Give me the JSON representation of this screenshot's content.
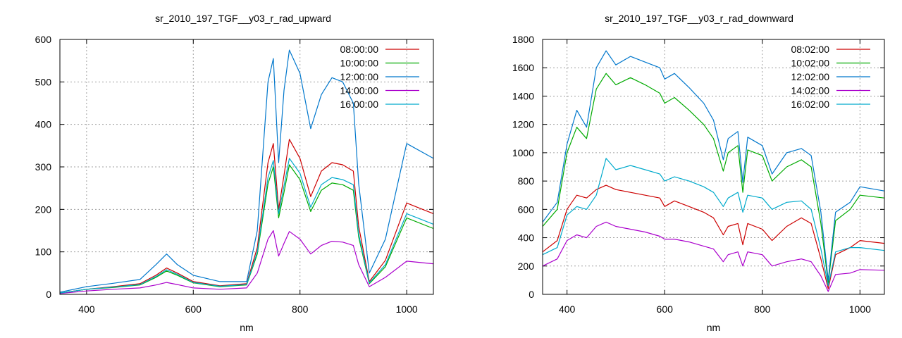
{
  "chart_data": [
    {
      "type": "line",
      "title": "sr_2010_197_TGF__y03_r_rad_upward",
      "xlabel": "nm",
      "ylabel": "",
      "xlim": [
        350,
        1050
      ],
      "ylim": [
        0,
        600
      ],
      "xticks": [
        400,
        600,
        800,
        1000
      ],
      "yticks": [
        0,
        100,
        200,
        300,
        400,
        500,
        600
      ],
      "grid": true,
      "legend_position": "top-right",
      "series": [
        {
          "name": "08:00:00",
          "color": "#cc0000",
          "x": [
            350,
            400,
            450,
            500,
            530,
            550,
            570,
            600,
            650,
            700,
            720,
            740,
            750,
            760,
            770,
            780,
            800,
            820,
            840,
            860,
            880,
            900,
            910,
            930,
            960,
            1000,
            1050
          ],
          "y": [
            3,
            12,
            18,
            25,
            45,
            62,
            50,
            30,
            20,
            25,
            110,
            310,
            355,
            200,
            280,
            365,
            320,
            230,
            290,
            310,
            305,
            290,
            160,
            30,
            80,
            215,
            190
          ]
        },
        {
          "name": "10:00:00",
          "color": "#00aa00",
          "x": [
            350,
            400,
            450,
            500,
            530,
            550,
            570,
            600,
            650,
            700,
            720,
            740,
            750,
            760,
            770,
            780,
            800,
            820,
            840,
            860,
            880,
            900,
            910,
            930,
            960,
            1000,
            1050
          ],
          "y": [
            3,
            12,
            16,
            22,
            40,
            55,
            45,
            27,
            18,
            22,
            95,
            260,
            300,
            180,
            240,
            305,
            270,
            195,
            245,
            262,
            258,
            245,
            135,
            25,
            65,
            180,
            155
          ]
        },
        {
          "name": "12:00:00",
          "color": "#0077cc",
          "x": [
            350,
            400,
            450,
            500,
            530,
            550,
            570,
            600,
            650,
            700,
            720,
            740,
            750,
            760,
            770,
            780,
            800,
            820,
            840,
            860,
            880,
            900,
            910,
            930,
            960,
            1000,
            1050
          ],
          "y": [
            5,
            18,
            26,
            35,
            70,
            95,
            70,
            45,
            30,
            30,
            150,
            500,
            555,
            310,
            480,
            575,
            520,
            390,
            470,
            510,
            500,
            450,
            260,
            50,
            130,
            355,
            320
          ]
        },
        {
          "name": "14:00:00",
          "color": "#aa00cc",
          "x": [
            350,
            400,
            450,
            500,
            530,
            550,
            570,
            600,
            650,
            700,
            720,
            740,
            750,
            760,
            770,
            780,
            800,
            820,
            840,
            860,
            880,
            900,
            910,
            930,
            960,
            1000,
            1050
          ],
          "y": [
            2,
            8,
            12,
            15,
            22,
            28,
            23,
            15,
            12,
            15,
            50,
            130,
            150,
            90,
            120,
            148,
            130,
            95,
            115,
            125,
            123,
            115,
            70,
            18,
            40,
            78,
            72
          ]
        },
        {
          "name": "16:00:00",
          "color": "#00aacc",
          "x": [
            350,
            400,
            450,
            500,
            530,
            550,
            570,
            600,
            650,
            700,
            720,
            740,
            750,
            760,
            770,
            780,
            800,
            820,
            840,
            860,
            880,
            900,
            910,
            930,
            960,
            1000,
            1050
          ],
          "y": [
            3,
            12,
            17,
            23,
            42,
            58,
            47,
            28,
            19,
            23,
            100,
            275,
            315,
            190,
            255,
            320,
            285,
            205,
            258,
            275,
            270,
            258,
            142,
            27,
            70,
            190,
            165
          ]
        }
      ]
    },
    {
      "type": "line",
      "title": "sr_2010_197_TGF__y03_r_rad_downward",
      "xlabel": "nm",
      "ylabel": "",
      "xlim": [
        350,
        1050
      ],
      "ylim": [
        0,
        1800
      ],
      "xticks": [
        400,
        600,
        800,
        1000
      ],
      "yticks": [
        0,
        200,
        400,
        600,
        800,
        1000,
        1200,
        1400,
        1600,
        1800
      ],
      "grid": true,
      "legend_position": "top-right",
      "series": [
        {
          "name": "08:02:00",
          "color": "#cc0000",
          "x": [
            350,
            380,
            400,
            420,
            440,
            460,
            480,
            500,
            530,
            560,
            590,
            600,
            620,
            650,
            680,
            700,
            720,
            730,
            750,
            760,
            770,
            800,
            820,
            850,
            880,
            900,
            920,
            935,
            950,
            980,
            1000,
            1050
          ],
          "y": [
            300,
            380,
            600,
            700,
            680,
            740,
            770,
            740,
            720,
            700,
            680,
            620,
            660,
            620,
            580,
            540,
            420,
            480,
            500,
            350,
            500,
            460,
            380,
            480,
            540,
            500,
            250,
            40,
            280,
            330,
            380,
            360
          ]
        },
        {
          "name": "10:02:00",
          "color": "#00aa00",
          "x": [
            350,
            380,
            400,
            420,
            440,
            460,
            480,
            500,
            530,
            560,
            590,
            600,
            620,
            650,
            680,
            700,
            720,
            730,
            750,
            760,
            770,
            800,
            820,
            850,
            880,
            900,
            920,
            935,
            950,
            980,
            1000,
            1050
          ],
          "y": [
            480,
            600,
            1000,
            1180,
            1100,
            1450,
            1560,
            1480,
            1530,
            1480,
            1420,
            1350,
            1390,
            1300,
            1200,
            1100,
            870,
            1000,
            1050,
            720,
            1020,
            980,
            800,
            900,
            950,
            900,
            500,
            80,
            520,
            600,
            700,
            680
          ]
        },
        {
          "name": "12:02:00",
          "color": "#0077cc",
          "x": [
            350,
            380,
            400,
            420,
            440,
            460,
            480,
            500,
            530,
            560,
            590,
            600,
            620,
            650,
            680,
            700,
            720,
            730,
            750,
            760,
            770,
            800,
            820,
            850,
            880,
            900,
            920,
            935,
            950,
            980,
            1000,
            1050
          ],
          "y": [
            510,
            650,
            1060,
            1300,
            1180,
            1600,
            1720,
            1620,
            1680,
            1640,
            1600,
            1520,
            1560,
            1460,
            1350,
            1230,
            950,
            1100,
            1150,
            790,
            1110,
            1050,
            850,
            1000,
            1030,
            980,
            580,
            100,
            580,
            650,
            760,
            730
          ]
        },
        {
          "name": "14:02:00",
          "color": "#aa00cc",
          "x": [
            350,
            380,
            400,
            420,
            440,
            460,
            480,
            500,
            530,
            560,
            590,
            600,
            620,
            650,
            680,
            700,
            720,
            730,
            750,
            760,
            770,
            800,
            820,
            850,
            880,
            900,
            920,
            935,
            950,
            980,
            1000,
            1050
          ],
          "y": [
            200,
            250,
            380,
            420,
            400,
            480,
            510,
            480,
            460,
            440,
            410,
            390,
            390,
            370,
            340,
            320,
            230,
            280,
            300,
            200,
            300,
            280,
            200,
            230,
            250,
            230,
            130,
            20,
            140,
            150,
            175,
            170
          ]
        },
        {
          "name": "16:02:00",
          "color": "#00aacc",
          "x": [
            350,
            380,
            400,
            420,
            440,
            460,
            480,
            500,
            530,
            560,
            590,
            600,
            620,
            650,
            680,
            700,
            720,
            730,
            750,
            760,
            770,
            800,
            820,
            850,
            880,
            900,
            920,
            935,
            950,
            980,
            1000,
            1050
          ],
          "y": [
            280,
            330,
            560,
            620,
            600,
            700,
            960,
            880,
            910,
            880,
            850,
            800,
            830,
            800,
            760,
            720,
            620,
            680,
            720,
            580,
            700,
            680,
            600,
            650,
            660,
            600,
            320,
            60,
            300,
            330,
            330,
            310
          ]
        }
      ]
    }
  ]
}
